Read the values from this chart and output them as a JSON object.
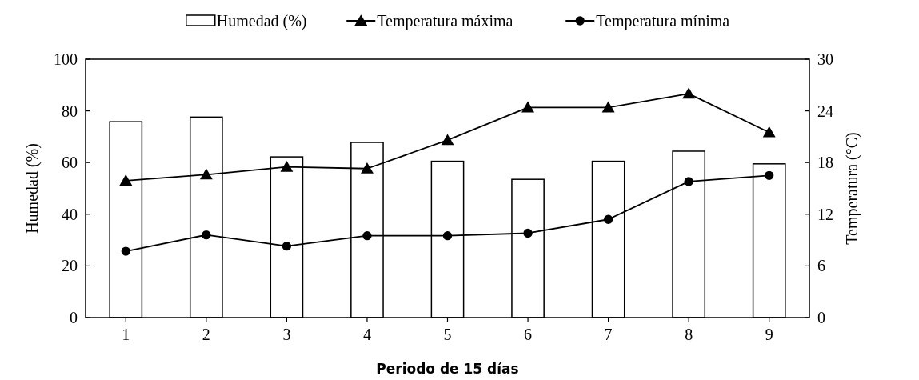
{
  "chart_data": {
    "type": "bar",
    "xlabel": "Periodo de 15 días",
    "ylabel": "Humedad (%)",
    "y2label": "Temperatura (°C)",
    "categories": [
      "1",
      "2",
      "3",
      "4",
      "5",
      "6",
      "7",
      "8",
      "9"
    ],
    "series": [
      {
        "name": "Humedad (%)",
        "color": "#ffffff",
        "values": [
          75.8,
          77.6,
          62.2,
          67.8,
          60.5,
          53.5,
          60.5,
          64.4,
          59.5
        ]
      },
      {
        "name": "Temperatura máxima",
        "type": "line",
        "axis": "y2",
        "color": "#000000",
        "marker": "triangle",
        "values": [
          15.9,
          16.6,
          17.5,
          17.3,
          20.6,
          24.4,
          24.4,
          26.0,
          21.5
        ]
      },
      {
        "name": "Temperatura mínima",
        "type": "line",
        "axis": "y2",
        "color": "#000000",
        "marker": "circle",
        "values": [
          7.7,
          9.6,
          8.3,
          9.5,
          9.5,
          9.8,
          11.4,
          15.8,
          16.5
        ]
      }
    ],
    "ylim": [
      0,
      100
    ],
    "yticks": [
      0,
      20,
      40,
      60,
      80,
      100
    ],
    "y2lim": [
      0,
      30
    ],
    "y2ticks": [
      0,
      6,
      12,
      18,
      24,
      30
    ],
    "legend": "top",
    "grid": false
  }
}
